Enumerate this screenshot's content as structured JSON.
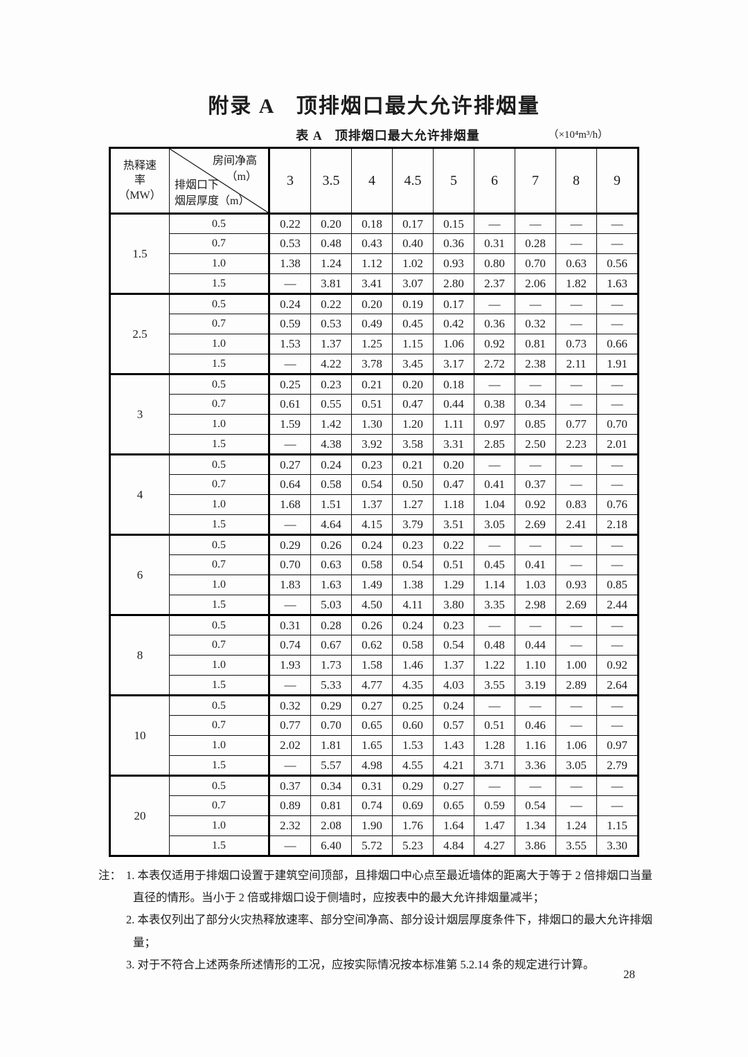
{
  "title": "附录 A　顶排烟口最大允许排烟量",
  "table": {
    "caption": "表 A　顶排烟口最大允许排烟量",
    "unit": "（×10⁴m³/h）",
    "row_header": "热释速\n率\n（MW）",
    "corner": {
      "top": "房间净高\n（m）",
      "bottom": "排烟口下\n烟层厚度（m）"
    },
    "columns": [
      "3",
      "3.5",
      "4",
      "4.5",
      "5",
      "6",
      "7",
      "8",
      "9"
    ],
    "depths": [
      "0.5",
      "0.7",
      "1.0",
      "1.5"
    ],
    "groups": [
      {
        "rate": "1.5",
        "rows": [
          [
            "0.22",
            "0.20",
            "0.18",
            "0.17",
            "0.15",
            "—",
            "—",
            "—",
            "—"
          ],
          [
            "0.53",
            "0.48",
            "0.43",
            "0.40",
            "0.36",
            "0.31",
            "0.28",
            "—",
            "—"
          ],
          [
            "1.38",
            "1.24",
            "1.12",
            "1.02",
            "0.93",
            "0.80",
            "0.70",
            "0.63",
            "0.56"
          ],
          [
            "—",
            "3.81",
            "3.41",
            "3.07",
            "2.80",
            "2.37",
            "2.06",
            "1.82",
            "1.63"
          ]
        ]
      },
      {
        "rate": "2.5",
        "rows": [
          [
            "0.24",
            "0.22",
            "0.20",
            "0.19",
            "0.17",
            "—",
            "—",
            "—",
            "—"
          ],
          [
            "0.59",
            "0.53",
            "0.49",
            "0.45",
            "0.42",
            "0.36",
            "0.32",
            "—",
            "—"
          ],
          [
            "1.53",
            "1.37",
            "1.25",
            "1.15",
            "1.06",
            "0.92",
            "0.81",
            "0.73",
            "0.66"
          ],
          [
            "—",
            "4.22",
            "3.78",
            "3.45",
            "3.17",
            "2.72",
            "2.38",
            "2.11",
            "1.91"
          ]
        ]
      },
      {
        "rate": "3",
        "rows": [
          [
            "0.25",
            "0.23",
            "0.21",
            "0.20",
            "0.18",
            "—",
            "—",
            "—",
            "—"
          ],
          [
            "0.61",
            "0.55",
            "0.51",
            "0.47",
            "0.44",
            "0.38",
            "0.34",
            "—",
            "—"
          ],
          [
            "1.59",
            "1.42",
            "1.30",
            "1.20",
            "1.11",
            "0.97",
            "0.85",
            "0.77",
            "0.70"
          ],
          [
            "—",
            "4.38",
            "3.92",
            "3.58",
            "3.31",
            "2.85",
            "2.50",
            "2.23",
            "2.01"
          ]
        ]
      },
      {
        "rate": "4",
        "rows": [
          [
            "0.27",
            "0.24",
            "0.23",
            "0.21",
            "0.20",
            "—",
            "—",
            "—",
            "—"
          ],
          [
            "0.64",
            "0.58",
            "0.54",
            "0.50",
            "0.47",
            "0.41",
            "0.37",
            "—",
            "—"
          ],
          [
            "1.68",
            "1.51",
            "1.37",
            "1.27",
            "1.18",
            "1.04",
            "0.92",
            "0.83",
            "0.76"
          ],
          [
            "—",
            "4.64",
            "4.15",
            "3.79",
            "3.51",
            "3.05",
            "2.69",
            "2.41",
            "2.18"
          ]
        ]
      },
      {
        "rate": "6",
        "rows": [
          [
            "0.29",
            "0.26",
            "0.24",
            "0.23",
            "0.22",
            "—",
            "—",
            "—",
            "—"
          ],
          [
            "0.70",
            "0.63",
            "0.58",
            "0.54",
            "0.51",
            "0.45",
            "0.41",
            "—",
            "—"
          ],
          [
            "1.83",
            "1.63",
            "1.49",
            "1.38",
            "1.29",
            "1.14",
            "1.03",
            "0.93",
            "0.85"
          ],
          [
            "—",
            "5.03",
            "4.50",
            "4.11",
            "3.80",
            "3.35",
            "2.98",
            "2.69",
            "2.44"
          ]
        ]
      },
      {
        "rate": "8",
        "rows": [
          [
            "0.31",
            "0.28",
            "0.26",
            "0.24",
            "0.23",
            "—",
            "—",
            "—",
            "—"
          ],
          [
            "0.74",
            "0.67",
            "0.62",
            "0.58",
            "0.54",
            "0.48",
            "0.44",
            "—",
            "—"
          ],
          [
            "1.93",
            "1.73",
            "1.58",
            "1.46",
            "1.37",
            "1.22",
            "1.10",
            "1.00",
            "0.92"
          ],
          [
            "—",
            "5.33",
            "4.77",
            "4.35",
            "4.03",
            "3.55",
            "3.19",
            "2.89",
            "2.64"
          ]
        ]
      },
      {
        "rate": "10",
        "rows": [
          [
            "0.32",
            "0.29",
            "0.27",
            "0.25",
            "0.24",
            "—",
            "—",
            "—",
            "—"
          ],
          [
            "0.77",
            "0.70",
            "0.65",
            "0.60",
            "0.57",
            "0.51",
            "0.46",
            "—",
            "—"
          ],
          [
            "2.02",
            "1.81",
            "1.65",
            "1.53",
            "1.43",
            "1.28",
            "1.16",
            "1.06",
            "0.97"
          ],
          [
            "—",
            "5.57",
            "4.98",
            "4.55",
            "4.21",
            "3.71",
            "3.36",
            "3.05",
            "2.79"
          ]
        ]
      },
      {
        "rate": "20",
        "rows": [
          [
            "0.37",
            "0.34",
            "0.31",
            "0.29",
            "0.27",
            "—",
            "—",
            "—",
            "—"
          ],
          [
            "0.89",
            "0.81",
            "0.74",
            "0.69",
            "0.65",
            "0.59",
            "0.54",
            "—",
            "—"
          ],
          [
            "2.32",
            "2.08",
            "1.90",
            "1.76",
            "1.64",
            "1.47",
            "1.34",
            "1.24",
            "1.15"
          ],
          [
            "—",
            "6.40",
            "5.72",
            "5.23",
            "4.84",
            "4.27",
            "3.86",
            "3.55",
            "3.30"
          ]
        ]
      }
    ]
  },
  "notes": {
    "label": "注：",
    "items": [
      {
        "num": "1.",
        "text": "本表仅适用于排烟口设置于建筑空间顶部，且排烟口中心点至最近墙体的距离大于等于 2 倍排烟口当量直径的情形。当小于 2 倍或排烟口设于侧墙时，应按表中的最大允许排烟量减半；"
      },
      {
        "num": "2.",
        "text": "本表仅列出了部分火灾热释放速率、部分空间净高、部分设计烟层厚度条件下，排烟口的最大允许排烟量；"
      },
      {
        "num": "3.",
        "text": "对于不符合上述两条所述情形的工况，应按实际情况按本标准第 5.2.14 条的规定进行计算。"
      }
    ]
  },
  "page_number": "28"
}
